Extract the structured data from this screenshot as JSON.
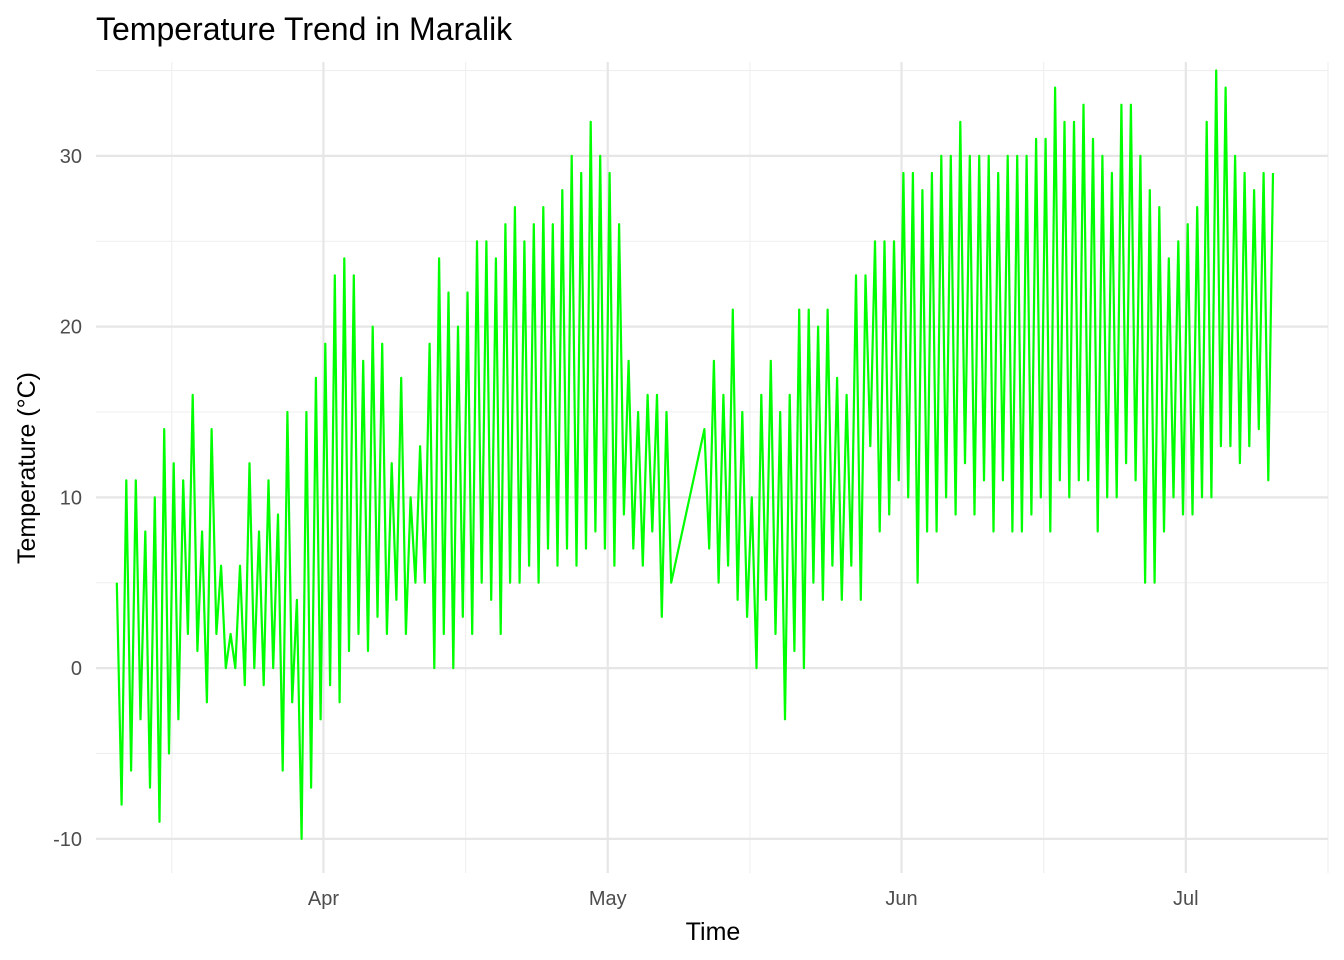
{
  "chart_data": {
    "type": "line",
    "title": "Temperature Trend in Maralik",
    "xlabel": "Time",
    "ylabel": "Temperature (°C)",
    "x_ticks": [
      {
        "date": "2022-04-01",
        "label": "Apr"
      },
      {
        "date": "2022-05-01",
        "label": "May"
      },
      {
        "date": "2022-06-01",
        "label": "Jun"
      },
      {
        "date": "2022-07-01",
        "label": "Jul"
      }
    ],
    "x_minor_ticks": [
      "2022-03-16",
      "2022-04-16",
      "2022-05-16",
      "2022-06-16",
      "2022-07-16"
    ],
    "y_ticks": [
      -10,
      0,
      10,
      20,
      30
    ],
    "y_minor_ticks": [
      -5,
      5,
      15,
      25,
      35
    ],
    "xlim": [
      "2022-03-08",
      "2022-07-16"
    ],
    "ylim": [
      -12,
      35.5
    ],
    "grid": true,
    "line_color": "#00ff00",
    "series": [
      {
        "values": [
          [
            "2022-03-10",
            5
          ],
          [
            "2022-03-10",
            -8
          ],
          [
            "2022-03-11",
            11
          ],
          [
            "2022-03-11",
            -6
          ],
          [
            "2022-03-12",
            11
          ],
          [
            "2022-03-12",
            -3
          ],
          [
            "2022-03-13",
            8
          ],
          [
            "2022-03-13",
            -7
          ],
          [
            "2022-03-14",
            10
          ],
          [
            "2022-03-14",
            -9
          ],
          [
            "2022-03-15",
            14
          ],
          [
            "2022-03-15",
            -5
          ],
          [
            "2022-03-16",
            12
          ],
          [
            "2022-03-16",
            -3
          ],
          [
            "2022-03-17",
            11
          ],
          [
            "2022-03-17",
            2
          ],
          [
            "2022-03-18",
            16
          ],
          [
            "2022-03-18",
            1
          ],
          [
            "2022-03-19",
            8
          ],
          [
            "2022-03-19",
            -2
          ],
          [
            "2022-03-20",
            14
          ],
          [
            "2022-03-20",
            2
          ],
          [
            "2022-03-21",
            6
          ],
          [
            "2022-03-21",
            0
          ],
          [
            "2022-03-22",
            2
          ],
          [
            "2022-03-22",
            0
          ],
          [
            "2022-03-23",
            6
          ],
          [
            "2022-03-23",
            -1
          ],
          [
            "2022-03-24",
            12
          ],
          [
            "2022-03-24",
            0
          ],
          [
            "2022-03-25",
            8
          ],
          [
            "2022-03-25",
            -1
          ],
          [
            "2022-03-26",
            11
          ],
          [
            "2022-03-26",
            0
          ],
          [
            "2022-03-27",
            9
          ],
          [
            "2022-03-27",
            -6
          ],
          [
            "2022-03-28",
            15
          ],
          [
            "2022-03-28",
            -2
          ],
          [
            "2022-03-29",
            4
          ],
          [
            "2022-03-29",
            -10
          ],
          [
            "2022-03-30",
            15
          ],
          [
            "2022-03-30",
            -7
          ],
          [
            "2022-03-31",
            17
          ],
          [
            "2022-03-31",
            -3
          ],
          [
            "2022-04-01",
            19
          ],
          [
            "2022-04-01",
            -1
          ],
          [
            "2022-04-02",
            23
          ],
          [
            "2022-04-02",
            -2
          ],
          [
            "2022-04-03",
            24
          ],
          [
            "2022-04-03",
            1
          ],
          [
            "2022-04-04",
            23
          ],
          [
            "2022-04-04",
            2
          ],
          [
            "2022-04-05",
            18
          ],
          [
            "2022-04-05",
            1
          ],
          [
            "2022-04-06",
            20
          ],
          [
            "2022-04-06",
            3
          ],
          [
            "2022-04-07",
            19
          ],
          [
            "2022-04-07",
            2
          ],
          [
            "2022-04-08",
            12
          ],
          [
            "2022-04-08",
            4
          ],
          [
            "2022-04-09",
            17
          ],
          [
            "2022-04-09",
            2
          ],
          [
            "2022-04-10",
            10
          ],
          [
            "2022-04-10",
            5
          ],
          [
            "2022-04-11",
            13
          ],
          [
            "2022-04-11",
            5
          ],
          [
            "2022-04-12",
            19
          ],
          [
            "2022-04-12",
            0
          ],
          [
            "2022-04-13",
            24
          ],
          [
            "2022-04-13",
            2
          ],
          [
            "2022-04-14",
            22
          ],
          [
            "2022-04-14",
            0
          ],
          [
            "2022-04-15",
            20
          ],
          [
            "2022-04-15",
            3
          ],
          [
            "2022-04-16",
            22
          ],
          [
            "2022-04-16",
            2
          ],
          [
            "2022-04-17",
            25
          ],
          [
            "2022-04-17",
            5
          ],
          [
            "2022-04-18",
            25
          ],
          [
            "2022-04-18",
            4
          ],
          [
            "2022-04-19",
            24
          ],
          [
            "2022-04-19",
            2
          ],
          [
            "2022-04-20",
            26
          ],
          [
            "2022-04-20",
            5
          ],
          [
            "2022-04-21",
            27
          ],
          [
            "2022-04-21",
            5
          ],
          [
            "2022-04-22",
            25
          ],
          [
            "2022-04-22",
            6
          ],
          [
            "2022-04-23",
            26
          ],
          [
            "2022-04-23",
            5
          ],
          [
            "2022-04-24",
            27
          ],
          [
            "2022-04-24",
            7
          ],
          [
            "2022-04-25",
            26
          ],
          [
            "2022-04-25",
            6
          ],
          [
            "2022-04-26",
            28
          ],
          [
            "2022-04-26",
            7
          ],
          [
            "2022-04-27",
            30
          ],
          [
            "2022-04-27",
            6
          ],
          [
            "2022-04-28",
            29
          ],
          [
            "2022-04-28",
            7
          ],
          [
            "2022-04-29",
            32
          ],
          [
            "2022-04-29",
            8
          ],
          [
            "2022-04-30",
            30
          ],
          [
            "2022-04-30",
            7
          ],
          [
            "2022-05-01",
            29
          ],
          [
            "2022-05-01",
            6
          ],
          [
            "2022-05-02",
            26
          ],
          [
            "2022-05-02",
            9
          ],
          [
            "2022-05-03",
            18
          ],
          [
            "2022-05-03",
            7
          ],
          [
            "2022-05-04",
            15
          ],
          [
            "2022-05-04",
            6
          ],
          [
            "2022-05-05",
            16
          ],
          [
            "2022-05-05",
            8
          ],
          [
            "2022-05-06",
            16
          ],
          [
            "2022-05-06",
            3
          ],
          [
            "2022-05-07",
            15
          ],
          [
            "2022-05-07",
            5
          ],
          [
            "2022-05-11",
            14
          ],
          [
            "2022-05-11",
            7
          ],
          [
            "2022-05-12",
            18
          ],
          [
            "2022-05-12",
            5
          ],
          [
            "2022-05-13",
            16
          ],
          [
            "2022-05-13",
            6
          ],
          [
            "2022-05-14",
            21
          ],
          [
            "2022-05-14",
            4
          ],
          [
            "2022-05-15",
            15
          ],
          [
            "2022-05-15",
            3
          ],
          [
            "2022-05-16",
            10
          ],
          [
            "2022-05-16",
            0
          ],
          [
            "2022-05-17",
            16
          ],
          [
            "2022-05-17",
            4
          ],
          [
            "2022-05-18",
            18
          ],
          [
            "2022-05-18",
            2
          ],
          [
            "2022-05-19",
            15
          ],
          [
            "2022-05-19",
            -3
          ],
          [
            "2022-05-20",
            16
          ],
          [
            "2022-05-20",
            1
          ],
          [
            "2022-05-21",
            21
          ],
          [
            "2022-05-21",
            0
          ],
          [
            "2022-05-22",
            21
          ],
          [
            "2022-05-22",
            5
          ],
          [
            "2022-05-23",
            20
          ],
          [
            "2022-05-23",
            4
          ],
          [
            "2022-05-24",
            21
          ],
          [
            "2022-05-24",
            6
          ],
          [
            "2022-05-25",
            17
          ],
          [
            "2022-05-25",
            4
          ],
          [
            "2022-05-26",
            16
          ],
          [
            "2022-05-26",
            6
          ],
          [
            "2022-05-27",
            23
          ],
          [
            "2022-05-27",
            4
          ],
          [
            "2022-05-28",
            23
          ],
          [
            "2022-05-28",
            13
          ],
          [
            "2022-05-29",
            25
          ],
          [
            "2022-05-29",
            8
          ],
          [
            "2022-05-30",
            25
          ],
          [
            "2022-05-30",
            9
          ],
          [
            "2022-05-31",
            25
          ],
          [
            "2022-05-31",
            11
          ],
          [
            "2022-06-01",
            29
          ],
          [
            "2022-06-01",
            10
          ],
          [
            "2022-06-02",
            29
          ],
          [
            "2022-06-02",
            5
          ],
          [
            "2022-06-03",
            28
          ],
          [
            "2022-06-03",
            8
          ],
          [
            "2022-06-04",
            29
          ],
          [
            "2022-06-04",
            8
          ],
          [
            "2022-06-05",
            30
          ],
          [
            "2022-06-05",
            10
          ],
          [
            "2022-06-06",
            30
          ],
          [
            "2022-06-06",
            9
          ],
          [
            "2022-06-07",
            32
          ],
          [
            "2022-06-07",
            12
          ],
          [
            "2022-06-08",
            30
          ],
          [
            "2022-06-08",
            9
          ],
          [
            "2022-06-09",
            30
          ],
          [
            "2022-06-09",
            11
          ],
          [
            "2022-06-10",
            30
          ],
          [
            "2022-06-10",
            8
          ],
          [
            "2022-06-11",
            29
          ],
          [
            "2022-06-11",
            11
          ],
          [
            "2022-06-12",
            30
          ],
          [
            "2022-06-12",
            8
          ],
          [
            "2022-06-13",
            30
          ],
          [
            "2022-06-13",
            8
          ],
          [
            "2022-06-14",
            30
          ],
          [
            "2022-06-14",
            9
          ],
          [
            "2022-06-15",
            31
          ],
          [
            "2022-06-15",
            10
          ],
          [
            "2022-06-16",
            31
          ],
          [
            "2022-06-16",
            8
          ],
          [
            "2022-06-17",
            34
          ],
          [
            "2022-06-17",
            11
          ],
          [
            "2022-06-18",
            32
          ],
          [
            "2022-06-18",
            10
          ],
          [
            "2022-06-19",
            32
          ],
          [
            "2022-06-19",
            11
          ],
          [
            "2022-06-20",
            33
          ],
          [
            "2022-06-20",
            11
          ],
          [
            "2022-06-21",
            31
          ],
          [
            "2022-06-21",
            8
          ],
          [
            "2022-06-22",
            30
          ],
          [
            "2022-06-22",
            10
          ],
          [
            "2022-06-23",
            29
          ],
          [
            "2022-06-23",
            10
          ],
          [
            "2022-06-24",
            33
          ],
          [
            "2022-06-24",
            12
          ],
          [
            "2022-06-25",
            33
          ],
          [
            "2022-06-25",
            11
          ],
          [
            "2022-06-26",
            30
          ],
          [
            "2022-06-26",
            5
          ],
          [
            "2022-06-27",
            28
          ],
          [
            "2022-06-27",
            5
          ],
          [
            "2022-06-28",
            27
          ],
          [
            "2022-06-28",
            8
          ],
          [
            "2022-06-29",
            24
          ],
          [
            "2022-06-29",
            10
          ],
          [
            "2022-06-30",
            25
          ],
          [
            "2022-06-30",
            9
          ],
          [
            "2022-07-01",
            26
          ],
          [
            "2022-07-01",
            9
          ],
          [
            "2022-07-02",
            27
          ],
          [
            "2022-07-02",
            10
          ],
          [
            "2022-07-03",
            32
          ],
          [
            "2022-07-03",
            10
          ],
          [
            "2022-07-04",
            35
          ],
          [
            "2022-07-04",
            13
          ],
          [
            "2022-07-05",
            34
          ],
          [
            "2022-07-05",
            13
          ],
          [
            "2022-07-06",
            30
          ],
          [
            "2022-07-06",
            12
          ],
          [
            "2022-07-07",
            29
          ],
          [
            "2022-07-07",
            13
          ],
          [
            "2022-07-08",
            28
          ],
          [
            "2022-07-08",
            14
          ],
          [
            "2022-07-09",
            29
          ],
          [
            "2022-07-09",
            11
          ],
          [
            "2022-07-10",
            29
          ]
        ]
      }
    ]
  }
}
